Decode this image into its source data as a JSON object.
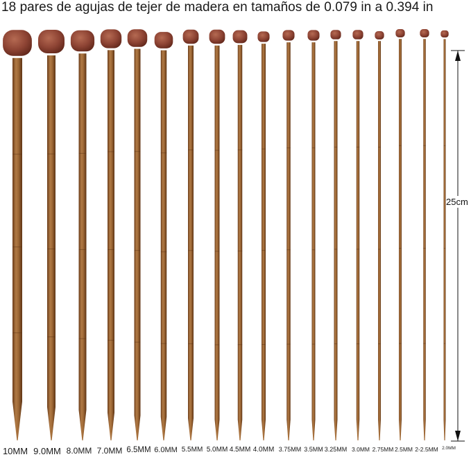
{
  "title": "18 pares de agujas de tejer de madera en tamaños de 0.079 in a 0.394 in",
  "length_label": "25cm",
  "colors": {
    "shaft_light": "#a8743f",
    "shaft_dark": "#7a4a22",
    "head_light": "#a35c46",
    "head_dark": "#6e2e22"
  },
  "needles": [
    {
      "size": "10MM"
    },
    {
      "size": "9.0MM"
    },
    {
      "size": "8.0MM"
    },
    {
      "size": "7.0MM"
    },
    {
      "size": "6.5MM"
    },
    {
      "size": "6.0MM"
    },
    {
      "size": "5.5MM"
    },
    {
      "size": "5.0MM"
    },
    {
      "size": "4.5MM"
    },
    {
      "size": "4.0MM"
    },
    {
      "size": "3.75MM"
    },
    {
      "size": "3.5MM"
    },
    {
      "size": "3.25MM"
    },
    {
      "size": "3.0MM"
    },
    {
      "size": "2.75MM"
    },
    {
      "size": "2.5MM"
    },
    {
      "size": "2-2.5MM"
    },
    {
      "size": "2.0MM"
    }
  ]
}
